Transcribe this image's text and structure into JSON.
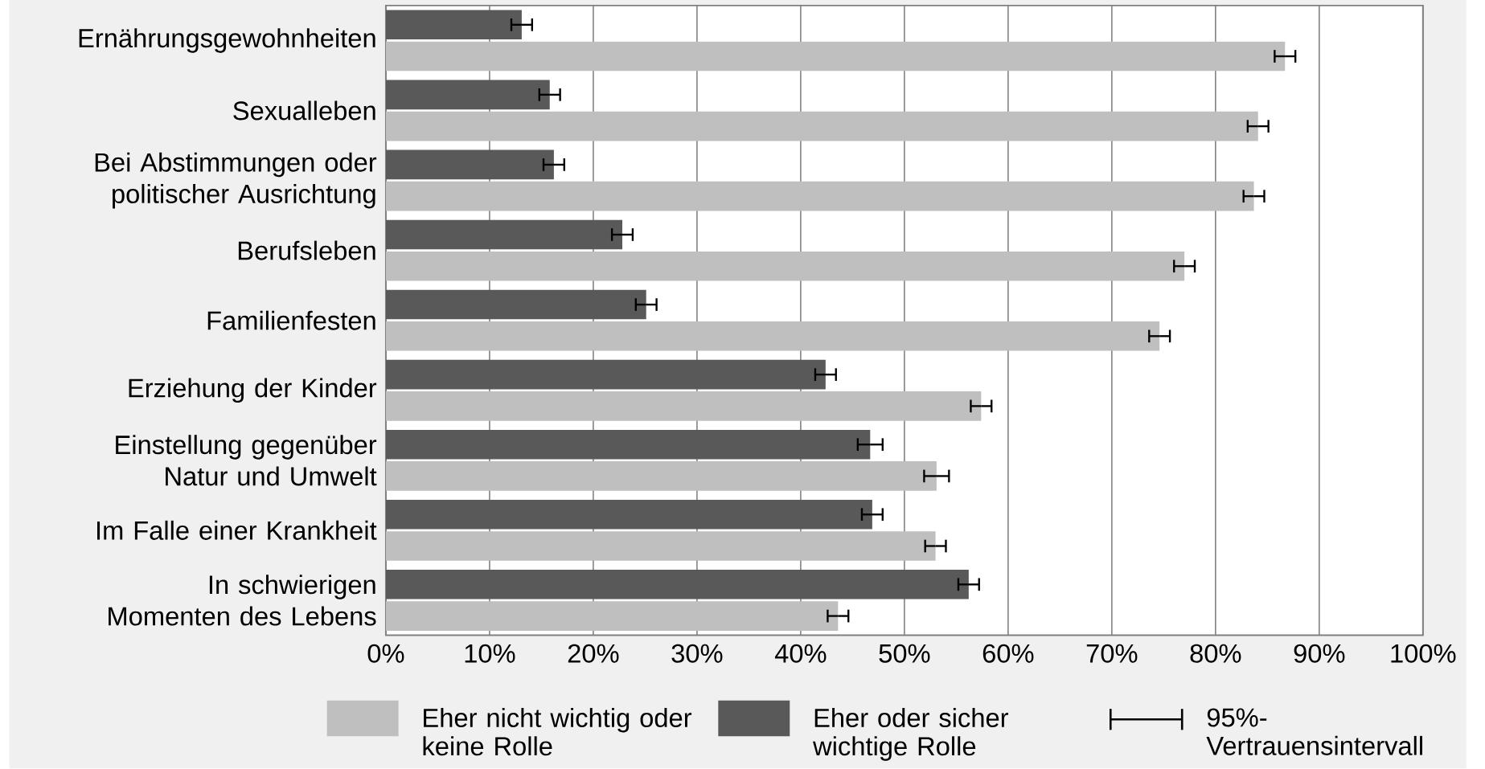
{
  "chart_data": {
    "type": "bar",
    "orientation": "horizontal",
    "categories": [
      "Ernährungsgewohnheiten",
      "Sexualleben",
      "Bei Abstimmungen oder politischer Ausrichtung",
      "Berufsleben",
      "Familienfesten",
      "Erziehung der Kinder",
      "Einstellung gegenüber Natur und Umwelt",
      "Im Falle einer Krankheit",
      "In schwierigen Momenten des Lebens"
    ],
    "series": [
      {
        "name": "Eher nicht wichtig oder keine Rolle",
        "color": "#bfbfbf",
        "values": [
          86.7,
          84.1,
          83.7,
          77.0,
          74.6,
          57.4,
          53.1,
          53.0,
          43.6
        ],
        "errors": [
          1,
          1,
          1,
          1,
          1,
          1,
          1.2,
          1,
          1
        ]
      },
      {
        "name": "Eher oder sicher wichtige Rolle",
        "color": "#595959",
        "values": [
          13.1,
          15.8,
          16.2,
          22.8,
          25.1,
          42.4,
          46.7,
          46.9,
          56.2
        ],
        "errors": [
          1,
          1,
          1,
          1,
          1,
          1,
          1.2,
          1,
          1
        ]
      }
    ],
    "xlim": [
      0,
      100
    ],
    "xticks": [
      {
        "value": 0,
        "label": "0%"
      },
      {
        "value": 10,
        "label": "10%"
      },
      {
        "value": 20,
        "label": "20%"
      },
      {
        "value": 30,
        "label": "30%"
      },
      {
        "value": 40,
        "label": "40%"
      },
      {
        "value": 50,
        "label": "50%"
      },
      {
        "value": 60,
        "label": "60%"
      },
      {
        "value": 70,
        "label": "70%"
      },
      {
        "value": 80,
        "label": "80%"
      },
      {
        "value": 90,
        "label": "90%"
      },
      {
        "value": 100,
        "label": "100%"
      }
    ],
    "grid": "x",
    "legend": "bottom",
    "annotations": [
      "95%-Vertrauensintervall"
    ]
  }
}
